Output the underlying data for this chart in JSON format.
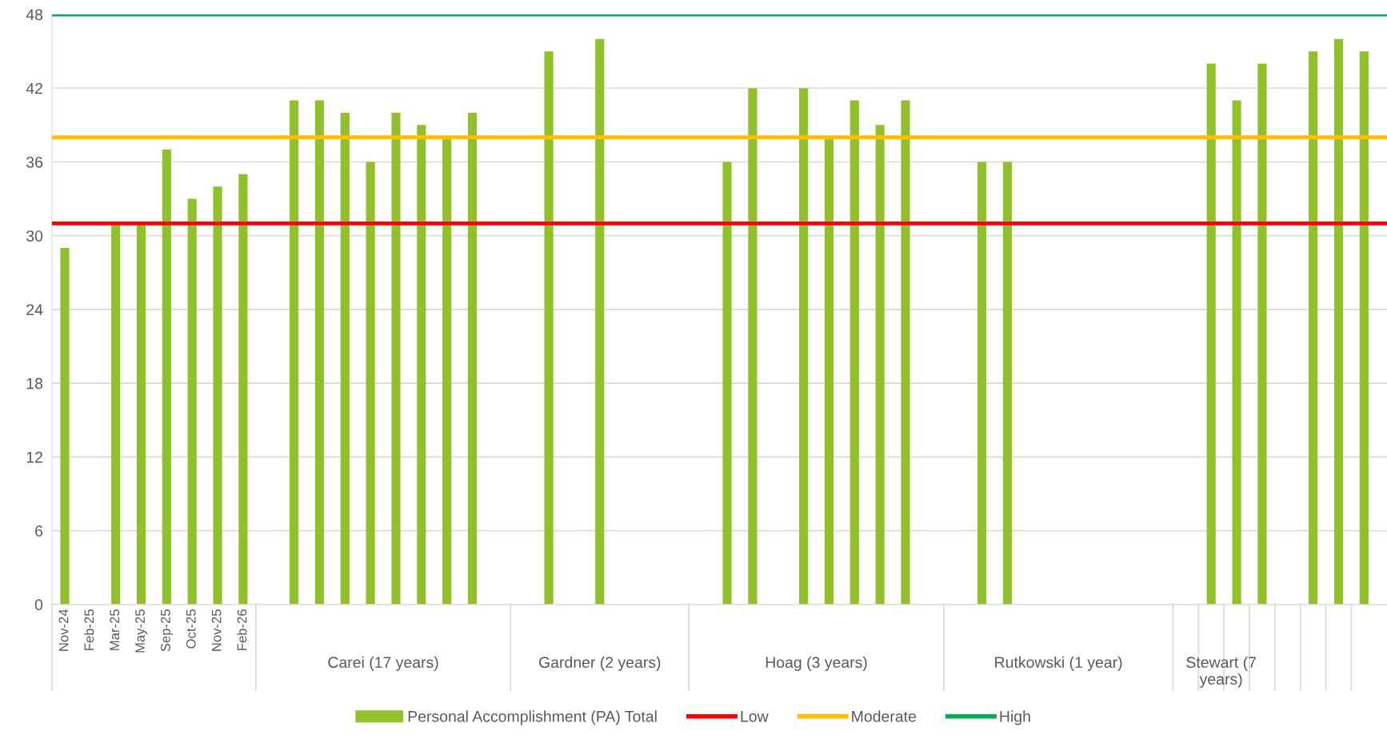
{
  "chart_data": {
    "type": "bar",
    "categories": [
      "Nov-24",
      "Feb-25",
      "Mar-25",
      "May-25",
      "Sep-25",
      "Oct-25",
      "Nov-25",
      "Feb-26",
      null,
      null,
      null,
      null,
      null,
      null,
      null,
      null,
      null,
      null,
      null,
      null,
      null,
      null,
      null,
      null,
      null,
      null,
      null,
      null,
      null,
      null,
      null,
      null,
      null,
      null,
      null,
      null,
      null,
      null,
      null,
      null,
      null,
      null,
      null,
      null,
      null,
      null,
      null,
      null,
      null,
      null,
      null,
      null
    ],
    "series": [
      {
        "name": "Personal Accomplishment (PA) Total",
        "color": "#92c02a",
        "values": [
          29,
          null,
          31,
          31,
          37,
          33,
          34,
          35,
          null,
          41,
          41,
          40,
          36,
          40,
          39,
          38,
          40,
          null,
          null,
          45,
          null,
          46,
          null,
          null,
          null,
          null,
          36,
          42,
          null,
          42,
          38,
          41,
          39,
          41,
          null,
          null,
          36,
          36,
          null,
          null,
          null,
          null,
          null,
          null,
          null,
          44,
          41,
          44,
          null,
          45,
          46,
          45
        ]
      }
    ],
    "ref_lines": [
      {
        "axis": "y",
        "value": 31,
        "label": "Low",
        "color": "#ff0000"
      },
      {
        "axis": "y",
        "value": 38,
        "label": "Moderate",
        "color": "#ffc000"
      },
      {
        "axis": "y",
        "value": 48,
        "label": "High",
        "color": "#00b050"
      }
    ],
    "annotations": [
      "Carei (17 years)",
      "Gardner (2 years)",
      "Hoag (3 years)",
      "Rutkowski (1 year)",
      "Stewart (7 years)"
    ],
    "ylim": [
      0,
      48
    ],
    "yticks": [
      0,
      6,
      12,
      18,
      24,
      30,
      36,
      42,
      48
    ],
    "grid": "y",
    "legend": "bottom"
  }
}
